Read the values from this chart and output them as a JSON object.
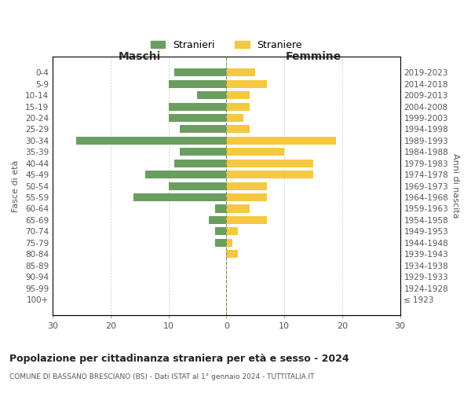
{
  "age_groups": [
    "100+",
    "95-99",
    "90-94",
    "85-89",
    "80-84",
    "75-79",
    "70-74",
    "65-69",
    "60-64",
    "55-59",
    "50-54",
    "45-49",
    "40-44",
    "35-39",
    "30-34",
    "25-29",
    "20-24",
    "15-19",
    "10-14",
    "5-9",
    "0-4"
  ],
  "birth_years": [
    "≤ 1923",
    "1924-1928",
    "1929-1933",
    "1934-1938",
    "1939-1943",
    "1944-1948",
    "1949-1953",
    "1954-1958",
    "1959-1963",
    "1964-1968",
    "1969-1973",
    "1974-1978",
    "1979-1983",
    "1984-1988",
    "1989-1993",
    "1994-1998",
    "1999-2003",
    "2004-2008",
    "2009-2013",
    "2014-2018",
    "2019-2023"
  ],
  "males": [
    0,
    0,
    0,
    0,
    0,
    2,
    2,
    3,
    2,
    16,
    10,
    14,
    9,
    8,
    26,
    8,
    10,
    10,
    5,
    10,
    9
  ],
  "females": [
    0,
    0,
    0,
    0,
    2,
    1,
    2,
    7,
    4,
    7,
    7,
    15,
    15,
    10,
    19,
    4,
    3,
    4,
    4,
    7,
    5
  ],
  "male_color": "#6a9e5f",
  "female_color": "#f5c842",
  "title": "Popolazione per cittadinanza straniera per età e sesso - 2024",
  "subtitle": "COMUNE DI BASSANO BRESCIANO (BS) - Dati ISTAT al 1° gennaio 2024 - TUTTITALIA.IT",
  "ylabel_left": "Fasce di età",
  "ylabel_right": "Anni di nascita",
  "xlabel_left": "Maschi",
  "xlabel_right": "Femmine",
  "legend_males": "Stranieri",
  "legend_females": "Straniere",
  "xlim": 30,
  "background_color": "#ffffff",
  "grid_color": "#cccccc"
}
